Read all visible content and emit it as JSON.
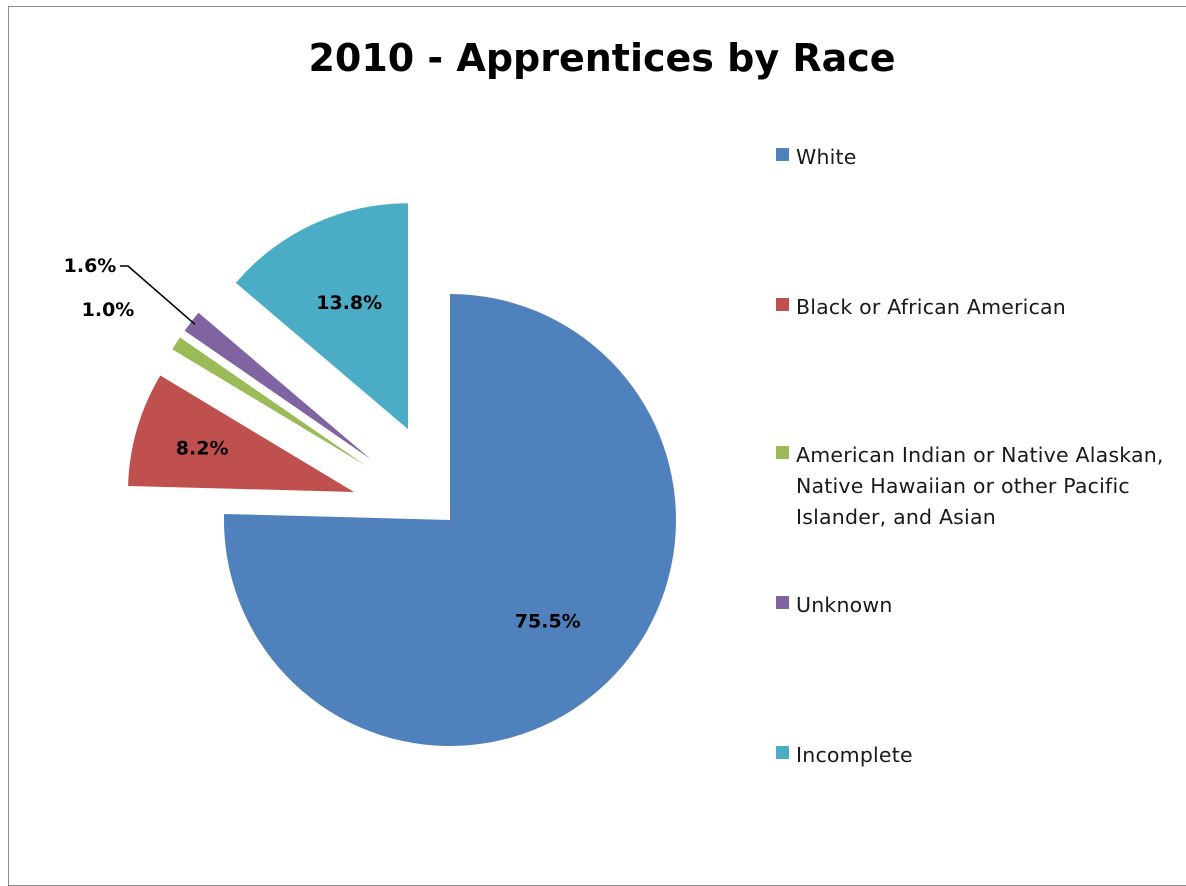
{
  "chart_data": {
    "type": "pie",
    "title": "2010 - Apprentices by Race",
    "legend_position": "right",
    "slices": [
      {
        "label": "White",
        "value": 75.5,
        "display": "75.5%",
        "color": "#4f81bd",
        "exploded": false
      },
      {
        "label": "Black or African American",
        "value": 8.2,
        "display": "8.2%",
        "color": "#c0504d",
        "exploded": true
      },
      {
        "label": "American Indian or Native Alaskan, Native Hawaiian or other Pacific Islander, and Asian",
        "value": 1.0,
        "display": "1.0%",
        "color": "#9bbb59",
        "exploded": true
      },
      {
        "label": "Unknown",
        "value": 1.6,
        "display": "1.6%",
        "color": "#8064a2",
        "exploded": true
      },
      {
        "label": "Incomplete",
        "value": 13.8,
        "display": "13.8%",
        "color": "#4bacc6",
        "exploded": true
      }
    ]
  }
}
